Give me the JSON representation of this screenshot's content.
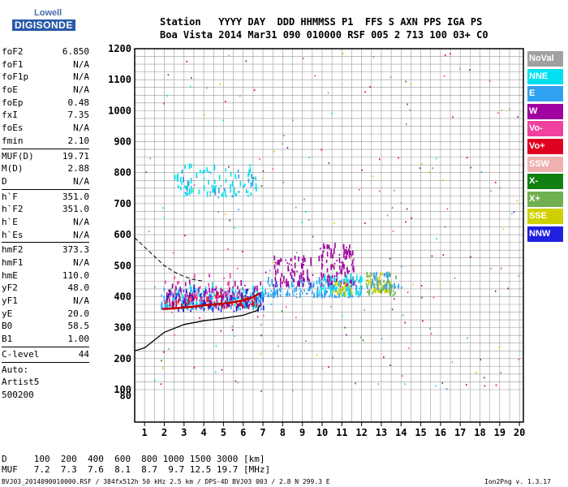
{
  "logo": {
    "line1": "Lowell",
    "line2": "DIGISONDE"
  },
  "header": {
    "row1": "Station   YYYY DAY  DDD HHMMSS P1  FFS S AXN PPS IGA PS",
    "row2": "Boa Vista 2014 Mar31 090 010000 RSF 005 2 713 100 03+ C0"
  },
  "params": [
    {
      "name": "foF2",
      "value": "6.850"
    },
    {
      "name": "foF1",
      "value": "N/A"
    },
    {
      "name": "foF1p",
      "value": "N/A"
    },
    {
      "name": "foE",
      "value": "N/A"
    },
    {
      "name": "foEp",
      "value": "0.48"
    },
    {
      "name": "fxI",
      "value": "7.35"
    },
    {
      "name": "foEs",
      "value": "N/A"
    },
    {
      "name": "fmin",
      "value": "2.10"
    },
    {
      "divider": true
    },
    {
      "name": "MUF(D)",
      "value": "19.71"
    },
    {
      "name": "M(D)",
      "value": "2.88"
    },
    {
      "name": "D",
      "value": "N/A"
    },
    {
      "divider": true
    },
    {
      "name": "h`F",
      "value": "351.0"
    },
    {
      "name": "h`F2",
      "value": "351.0"
    },
    {
      "name": "h`E",
      "value": "N/A"
    },
    {
      "name": "h`Es",
      "value": "N/A"
    },
    {
      "divider": true
    },
    {
      "name": "hmF2",
      "value": "373.3"
    },
    {
      "name": "hmF1",
      "value": "N/A"
    },
    {
      "name": "hmE",
      "value": "110.0"
    },
    {
      "name": "yF2",
      "value": "48.0"
    },
    {
      "name": "yF1",
      "value": "N/A"
    },
    {
      "name": "yE",
      "value": "20.0"
    },
    {
      "name": "B0",
      "value": "58.5"
    },
    {
      "name": "B1",
      "value": "1.00"
    },
    {
      "divider": true
    },
    {
      "name": "C-level",
      "value": "44"
    },
    {
      "divider": true
    },
    {
      "name": "Auto:",
      "value": ""
    },
    {
      "name": "Artist5",
      "value": ""
    },
    {
      "name": "500200",
      "value": ""
    }
  ],
  "legend": [
    {
      "label": "NoVal",
      "color": "#a0a0a0"
    },
    {
      "label": "NNE",
      "color": "#00e0f0"
    },
    {
      "label": "E",
      "color": "#30a0f0"
    },
    {
      "label": "W",
      "color": "#a000a0"
    },
    {
      "label": "Vo-",
      "color": "#f040a0"
    },
    {
      "label": "Vo+",
      "color": "#e00020"
    },
    {
      "label": "SSW",
      "color": "#f0b0b0"
    },
    {
      "label": "X-",
      "color": "#108010"
    },
    {
      "label": "X+",
      "color": "#70b050"
    },
    {
      "label": "SSE",
      "color": "#d0d000"
    },
    {
      "label": "NNW",
      "color": "#2020e0"
    }
  ],
  "footer": {
    "d_row": "D     100  200  400  600  800 1000 1500 3000 [km]",
    "muf_row": "MUF   7.2  7.3  7.6  8.1  8.7  9.7 12.5 19.7 [MHz]",
    "file_info": "BVJ03_2014090010000.RSF / 384fx512h 50 kHz 2.5 km / DPS-4D BVJ03 003 / 2.8 N 299.3 E",
    "version": "Ion2Png v. 1.3.17"
  },
  "chart_data": {
    "type": "scatter",
    "title": "",
    "xlabel": "",
    "ylabel": "",
    "xlim": [
      0.5,
      20.2
    ],
    "ylim": [
      80,
      1200
    ],
    "x_ticks": [
      1,
      2,
      3,
      4,
      5,
      6,
      7,
      8,
      9,
      10,
      11,
      12,
      13,
      14,
      15,
      16,
      17,
      18,
      19,
      20
    ],
    "y_ticks": [
      80,
      100,
      200,
      300,
      400,
      500,
      600,
      700,
      800,
      900,
      1000,
      1100,
      1200
    ],
    "grid": true,
    "profile_solid": {
      "color": "#000000",
      "x": [
        0.5,
        1.0,
        2.0,
        3.0,
        4.0,
        5.0,
        6.0,
        6.7,
        6.85
      ],
      "y": [
        225,
        235,
        285,
        310,
        322,
        330,
        340,
        355,
        373
      ]
    },
    "profile_dashed": {
      "color": "#000000",
      "x": [
        0.5,
        1.0,
        1.5,
        2.0,
        2.5,
        3.0,
        3.5,
        4.0
      ],
      "y": [
        590,
        560,
        530,
        500,
        480,
        465,
        455,
        450
      ]
    },
    "trace_fit": {
      "color": "#c00000",
      "x": [
        1.9,
        2.5,
        3.0,
        3.5,
        4.0,
        4.5,
        5.0,
        5.5,
        6.0,
        6.5,
        6.85
      ],
      "y": [
        360,
        362,
        365,
        368,
        372,
        375,
        378,
        382,
        388,
        398,
        412
      ]
    },
    "echo_clusters": [
      {
        "series": "E",
        "x": [
          1.8,
          7.0
        ],
        "y": [
          355,
          420
        ],
        "n": 160
      },
      {
        "series": "NNE",
        "x": [
          2.0,
          7.0
        ],
        "y": [
          360,
          430
        ],
        "n": 90
      },
      {
        "series": "W",
        "x": [
          2.0,
          7.0
        ],
        "y": [
          360,
          440
        ],
        "n": 90
      },
      {
        "series": "Vo+",
        "x": [
          2.0,
          6.8
        ],
        "y": [
          360,
          400
        ],
        "n": 70
      },
      {
        "series": "NNW",
        "x": [
          2.0,
          7.0
        ],
        "y": [
          350,
          420
        ],
        "n": 70
      },
      {
        "series": "Vo-",
        "x": [
          2.0,
          6.0
        ],
        "y": [
          380,
          470
        ],
        "n": 40
      },
      {
        "series": "E",
        "x": [
          7.0,
          12.0
        ],
        "y": [
          395,
          450
        ],
        "n": 160
      },
      {
        "series": "W",
        "x": [
          7.5,
          9.5
        ],
        "y": [
          430,
          520
        ],
        "n": 70
      },
      {
        "series": "W",
        "x": [
          9.8,
          11.6
        ],
        "y": [
          430,
          560
        ],
        "n": 110
      },
      {
        "series": "NNE",
        "x": [
          9.8,
          12.0
        ],
        "y": [
          400,
          460
        ],
        "n": 60
      },
      {
        "series": "SSE",
        "x": [
          10.5,
          11.5
        ],
        "y": [
          400,
          440
        ],
        "n": 25
      },
      {
        "series": "SSE",
        "x": [
          12.2,
          13.5
        ],
        "y": [
          410,
          470
        ],
        "n": 45
      },
      {
        "series": "X+",
        "x": [
          12.2,
          13.8
        ],
        "y": [
          400,
          470
        ],
        "n": 35
      },
      {
        "series": "E",
        "x": [
          12.2,
          14.0
        ],
        "y": [
          420,
          470
        ],
        "n": 30
      },
      {
        "series": "NNE",
        "x": [
          2.5,
          6.8
        ],
        "y": [
          720,
          820
        ],
        "n": 80
      },
      {
        "series": "E",
        "x": [
          2.5,
          6.5
        ],
        "y": [
          720,
          800
        ],
        "n": 25
      }
    ]
  }
}
